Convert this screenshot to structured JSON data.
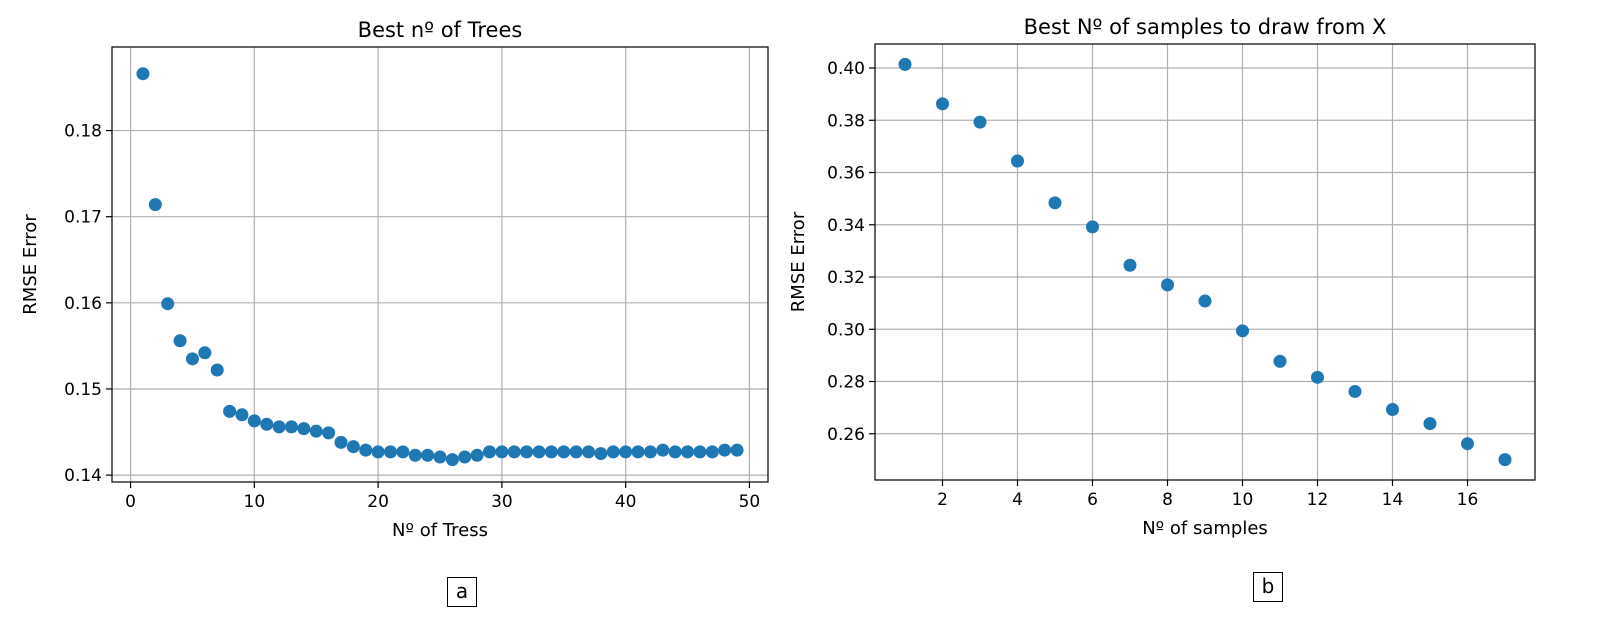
{
  "chart_data": [
    {
      "type": "scatter",
      "title": "Best nº of Trees",
      "xlabel": "Nº of Tress",
      "ylabel": "RMSE Error",
      "xlim": [
        -1.5,
        51.5
      ],
      "ylim": [
        0.1392,
        0.1897
      ],
      "xticks": [
        0,
        10,
        20,
        30,
        40,
        50
      ],
      "xtick_labels": [
        "0",
        "10",
        "20",
        "30",
        "40",
        "50"
      ],
      "yticks": [
        0.14,
        0.15,
        0.16,
        0.17,
        0.18
      ],
      "ytick_labels": [
        "0.14",
        "0.15",
        "0.16",
        "0.17",
        "0.18"
      ],
      "grid": true,
      "color": "#1f77b4",
      "series": [
        {
          "x": [
            1,
            2,
            3,
            4,
            5,
            6,
            7,
            8,
            9,
            10,
            11,
            12,
            13,
            14,
            15,
            16,
            17,
            18,
            19,
            20,
            21,
            22,
            23,
            24,
            25,
            26,
            27,
            28,
            29,
            30,
            31,
            32,
            33,
            34,
            35,
            36,
            37,
            38,
            39,
            40,
            41,
            42,
            43,
            44,
            45,
            46,
            47,
            48,
            49
          ],
          "y": [
            0.1866,
            0.1714,
            0.1599,
            0.1556,
            0.1535,
            0.1542,
            0.1522,
            0.1474,
            0.147,
            0.1463,
            0.1459,
            0.1456,
            0.1456,
            0.1454,
            0.1451,
            0.1449,
            0.1438,
            0.1433,
            0.1429,
            0.1427,
            0.1427,
            0.1427,
            0.1423,
            0.1423,
            0.1421,
            0.1418,
            0.1421,
            0.1423,
            0.1427,
            0.1427,
            0.1427,
            0.1427,
            0.1427,
            0.1427,
            0.1427,
            0.1427,
            0.1427,
            0.1425,
            0.1427,
            0.1427,
            0.1427,
            0.1427,
            0.1429,
            0.1427,
            0.1427,
            0.1427,
            0.1427,
            0.1429,
            0.1429
          ]
        }
      ]
    },
    {
      "type": "scatter",
      "title": "Best Nº of samples to draw from X",
      "xlabel": "Nº of samples",
      "ylabel": "RMSE Error",
      "xlim": [
        0.2,
        17.8
      ],
      "ylim": [
        0.2423,
        0.4092
      ],
      "xticks": [
        2,
        4,
        6,
        8,
        10,
        12,
        14,
        16
      ],
      "xtick_labels": [
        "2",
        "4",
        "6",
        "8",
        "10",
        "12",
        "14",
        "16"
      ],
      "yticks": [
        0.26,
        0.28,
        0.3,
        0.32,
        0.34,
        0.36,
        0.38,
        0.4
      ],
      "ytick_labels": [
        "0.26",
        "0.28",
        "0.30",
        "0.32",
        "0.34",
        "0.36",
        "0.38",
        "0.40"
      ],
      "grid": true,
      "color": "#1f77b4",
      "series": [
        {
          "x": [
            1,
            2,
            3,
            4,
            5,
            6,
            7,
            8,
            9,
            10,
            11,
            12,
            13,
            14,
            15,
            16,
            17
          ],
          "y": [
            0.4014,
            0.3863,
            0.3793,
            0.3644,
            0.3484,
            0.3392,
            0.3245,
            0.317,
            0.3108,
            0.2994,
            0.2877,
            0.2816,
            0.2762,
            0.2693,
            0.2639,
            0.2562,
            0.2501
          ]
        }
      ]
    }
  ],
  "panel_labels": [
    "a",
    "b"
  ]
}
